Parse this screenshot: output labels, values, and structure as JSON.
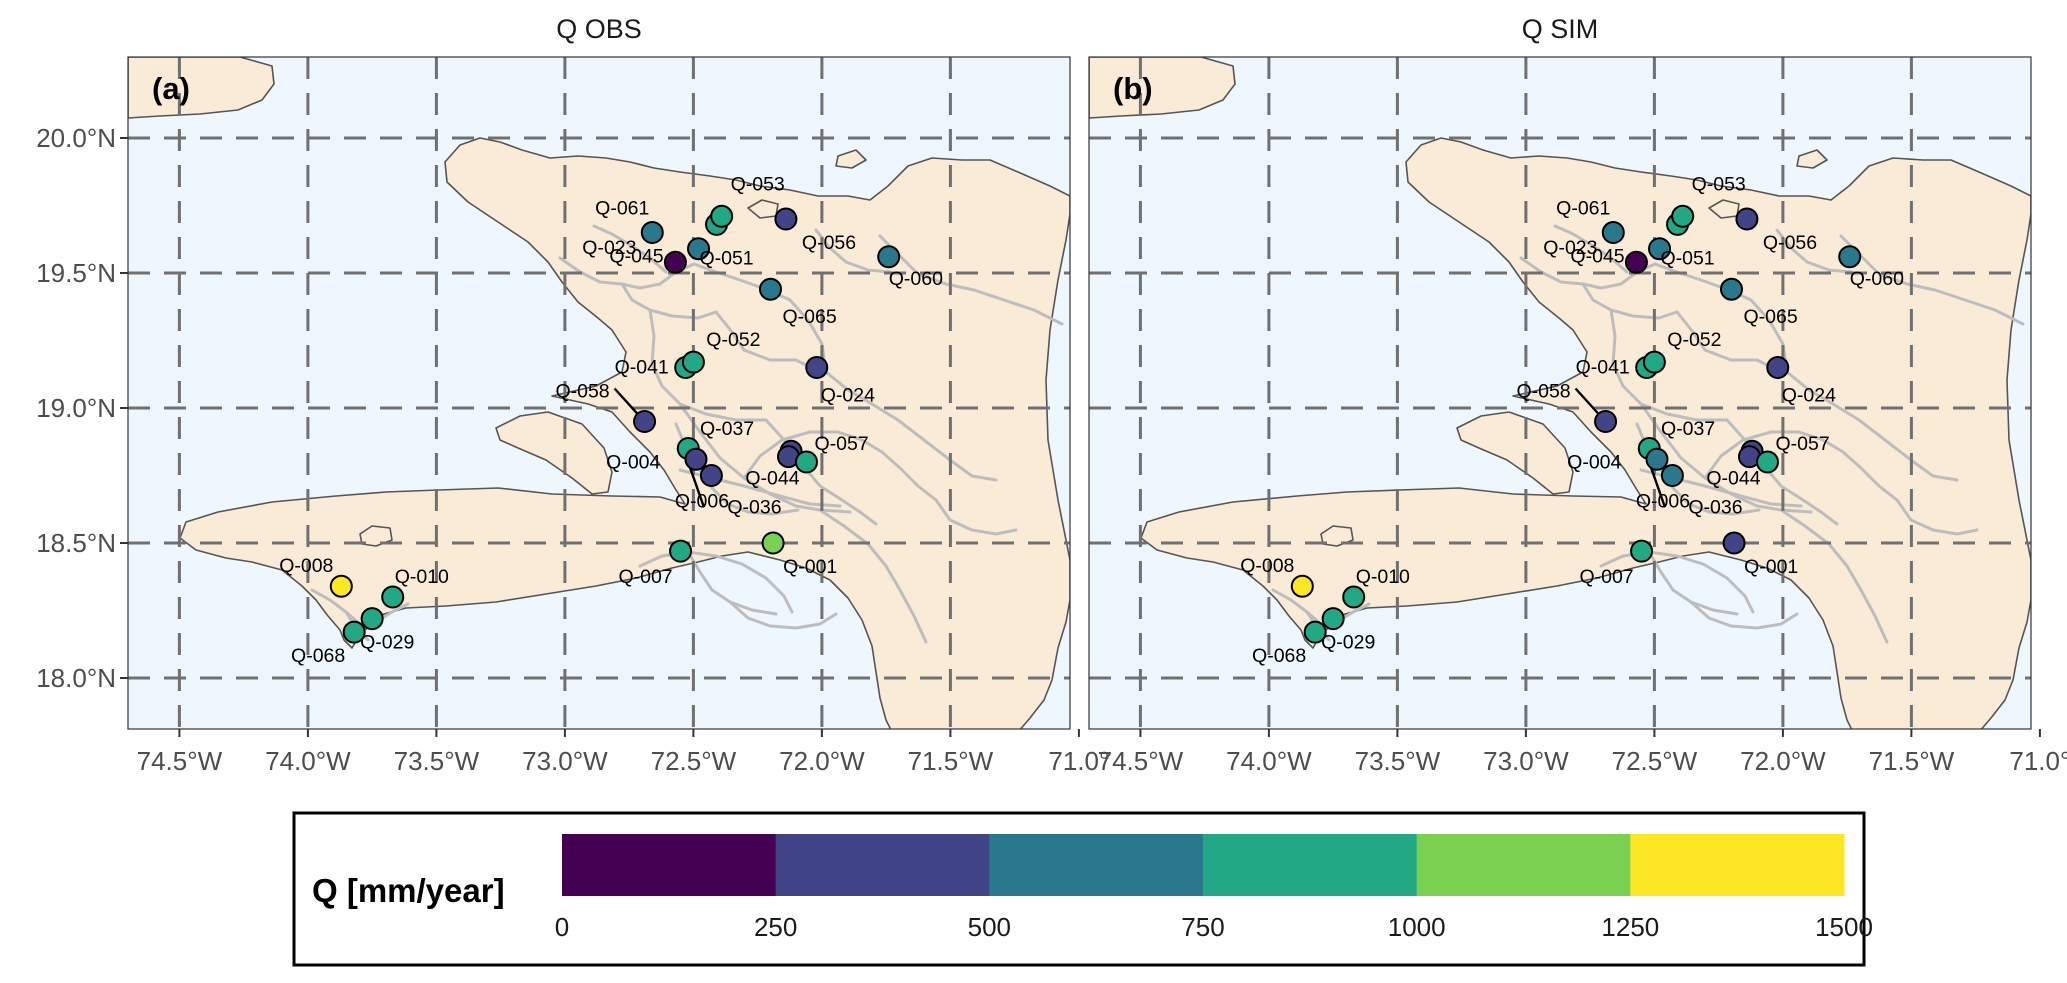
{
  "panels": [
    {
      "title": "Q OBS",
      "tag": "(a)",
      "key": "obs"
    },
    {
      "title": "Q SIM",
      "tag": "(b)",
      "key": "sim"
    }
  ],
  "axes": {
    "lon_ticks": [
      -74.5,
      -74.0,
      -73.5,
      -73.0,
      -72.5,
      -72.0,
      -71.5,
      -71.0
    ],
    "lon_labels": [
      "74.5°W",
      "74.0°W",
      "73.5°W",
      "73.0°W",
      "72.5°W",
      "72.0°W",
      "71.5°W",
      "71.0°"
    ],
    "lat_ticks": [
      18.0,
      18.5,
      19.0,
      19.5,
      20.0
    ],
    "lat_labels": [
      "18.0°N",
      "18.5°N",
      "19.0°N",
      "19.5°N",
      "20.0°N"
    ],
    "lon_range": [
      -74.7,
      -71.0
    ],
    "lat_range": [
      17.8,
      20.3
    ],
    "grid": "dashed"
  },
  "colors": {
    "ocean": "#EEF7FE",
    "land": "#FAEBD7",
    "coast": "#555555",
    "basin": "#BDBDBD",
    "grid": "#707070"
  },
  "legend": {
    "title": "Q [mm/year]",
    "breaks": [
      "0",
      "250",
      "500",
      "750",
      "1000",
      "1250",
      "1500"
    ],
    "colors": [
      "#440154",
      "#414487",
      "#2A788E",
      "#22A884",
      "#7AD151",
      "#FDE725"
    ]
  },
  "stations": [
    {
      "id": "Q-001",
      "lon": -72.19,
      "lat": 18.5,
      "obs": 4,
      "sim": 1
    },
    {
      "id": "Q-004",
      "lon": -72.52,
      "lat": 18.85,
      "obs": 3,
      "sim": 3
    },
    {
      "id": "Q-006",
      "lon": -72.49,
      "lat": 18.81,
      "obs": 1,
      "sim": 2
    },
    {
      "id": "Q-007",
      "lon": -72.55,
      "lat": 18.47,
      "obs": 3,
      "sim": 3
    },
    {
      "id": "Q-008",
      "lon": -73.87,
      "lat": 18.34,
      "obs": 5,
      "sim": 5
    },
    {
      "id": "Q-010",
      "lon": -73.67,
      "lat": 18.3,
      "obs": 3,
      "sim": 3
    },
    {
      "id": "Q-023",
      "lon": -72.57,
      "lat": 19.54,
      "obs": 0,
      "sim": 0
    },
    {
      "id": "Q-024",
      "lon": -72.02,
      "lat": 19.15,
      "obs": 1,
      "sim": 1
    },
    {
      "id": "Q-029",
      "lon": -73.75,
      "lat": 18.22,
      "obs": 3,
      "sim": 3
    },
    {
      "id": "Q-036",
      "lon": -72.43,
      "lat": 18.75,
      "obs": 1,
      "sim": 2
    },
    {
      "id": "Q-037",
      "lon": -72.12,
      "lat": 18.84,
      "obs": 1,
      "sim": 1
    },
    {
      "id": "Q-041",
      "lon": -72.53,
      "lat": 19.15,
      "obs": 3,
      "sim": 3
    },
    {
      "id": "Q-044",
      "lon": -72.13,
      "lat": 18.82,
      "obs": 1,
      "sim": 1
    },
    {
      "id": "Q-045",
      "lon": -72.41,
      "lat": 19.68,
      "obs": 3,
      "sim": 3
    },
    {
      "id": "Q-051",
      "lon": -72.48,
      "lat": 19.59,
      "obs": 2,
      "sim": 2
    },
    {
      "id": "Q-052",
      "lon": -72.5,
      "lat": 19.17,
      "obs": 3,
      "sim": 3
    },
    {
      "id": "Q-053",
      "lon": -72.39,
      "lat": 19.71,
      "obs": 3,
      "sim": 3
    },
    {
      "id": "Q-056",
      "lon": -72.14,
      "lat": 19.7,
      "obs": 1,
      "sim": 1
    },
    {
      "id": "Q-057",
      "lon": -72.06,
      "lat": 18.8,
      "obs": 3,
      "sim": 3
    },
    {
      "id": "Q-058",
      "lon": -72.69,
      "lat": 18.95,
      "obs": 1,
      "sim": 1
    },
    {
      "id": "Q-060",
      "lon": -71.74,
      "lat": 19.56,
      "obs": 2,
      "sim": 2
    },
    {
      "id": "Q-061",
      "lon": -72.66,
      "lat": 19.65,
      "obs": 2,
      "sim": 2
    },
    {
      "id": "Q-065",
      "lon": -72.2,
      "lat": 19.44,
      "obs": 2,
      "sim": 2
    },
    {
      "id": "Q-068",
      "lon": -73.82,
      "lat": 18.17,
      "obs": 3,
      "sim": 3
    }
  ]
}
